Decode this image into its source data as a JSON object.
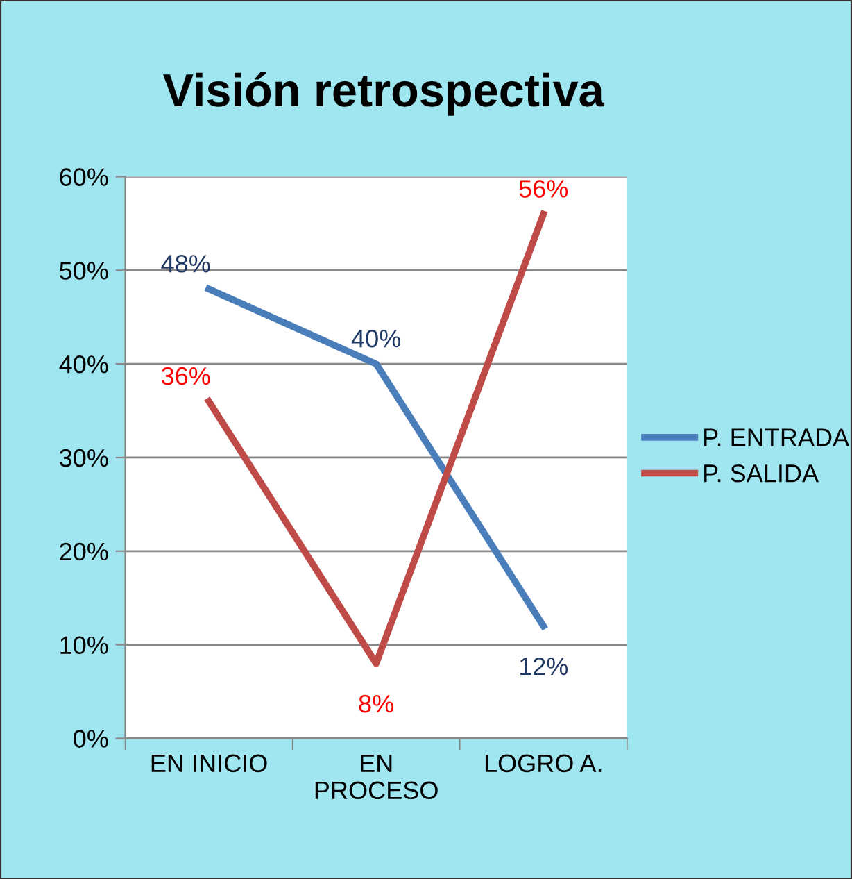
{
  "chart_data": {
    "type": "line",
    "title": "Visión retrospectiva",
    "categories": [
      "EN INICIO",
      "EN\nPROCESO",
      "LOGRO A."
    ],
    "series": [
      {
        "name": "P. ENTRADA",
        "color": "#4a7ebb",
        "values": [
          48,
          40,
          12
        ],
        "value_labels": [
          "48%",
          "40%",
          "12%"
        ]
      },
      {
        "name": "P. SALIDA",
        "color": "#be4b48",
        "values": [
          36,
          8,
          56
        ],
        "value_labels": [
          "36%",
          "8%",
          "56%"
        ]
      }
    ],
    "ylim": [
      0,
      60
    ],
    "yticks": [
      {
        "value": 0,
        "label": "0%"
      },
      {
        "value": 10,
        "label": "10%"
      },
      {
        "value": 20,
        "label": "20%"
      },
      {
        "value": 30,
        "label": "30%"
      },
      {
        "value": 40,
        "label": "40%"
      },
      {
        "value": 50,
        "label": "50%"
      },
      {
        "value": 60,
        "label": "60%"
      }
    ],
    "grid": "y",
    "legend": "right",
    "marker": "none",
    "line_style": "solid"
  }
}
